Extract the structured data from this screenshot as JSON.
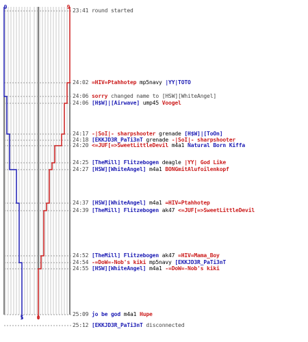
{
  "colors": {
    "blue": "#1c1cb4",
    "red": "#cc1c1c",
    "time": "#444444",
    "grid": "#c8c8c8",
    "axis": "#000000",
    "dotted": "#999999"
  },
  "scores": {
    "blue_start": "9",
    "red_start": "9",
    "blue_end": "5",
    "red_end": "0"
  },
  "events": [
    {
      "time": "23:41",
      "parts": [
        {
          "t": "round started",
          "c": "tx"
        }
      ]
    },
    {
      "time": "24:02",
      "parts": [
        {
          "t": "=HIV=Ptahhotep",
          "c": "red"
        },
        {
          "t": "mp5navy",
          "c": "wp"
        },
        {
          "t": "|YY|TOTO",
          "c": "blue"
        }
      ]
    },
    {
      "time": "24:06",
      "parts": [
        {
          "t": "sorry",
          "c": "red"
        },
        {
          "t": "changed name to",
          "c": "tx"
        },
        {
          "t": "[HSW][WhiteAngel]",
          "c": "tx"
        }
      ]
    },
    {
      "time": "24:06",
      "parts": [
        {
          "t": "[H$W]|[Airwave]",
          "c": "blue"
        },
        {
          "t": "ump45",
          "c": "wp"
        },
        {
          "t": "Voogel",
          "c": "red"
        }
      ]
    },
    {
      "time": "24:17",
      "parts": [
        {
          "t": "-|SoI|- sharpshooter",
          "c": "red"
        },
        {
          "t": "grenade",
          "c": "wp"
        },
        {
          "t": "[H$W]|[ToOn]",
          "c": "blue"
        }
      ]
    },
    {
      "time": "24:18",
      "parts": [
        {
          "t": "[EKKJD3R_PaTi3nT",
          "c": "blue"
        },
        {
          "t": "grenade",
          "c": "wp"
        },
        {
          "t": "-|SoI|- sharpshooter",
          "c": "red"
        }
      ]
    },
    {
      "time": "24:20",
      "parts": [
        {
          "t": "<=JUF[=>SweetLittleDevil",
          "c": "red"
        },
        {
          "t": "m4a1",
          "c": "wp"
        },
        {
          "t": "Natural Born Kiffa",
          "c": "blue"
        }
      ]
    },
    {
      "time": "24:25",
      "parts": [
        {
          "t": "[TheMill] Flitzebogen",
          "c": "blue"
        },
        {
          "t": "deagle",
          "c": "wp"
        },
        {
          "t": "|YY| God Like",
          "c": "red"
        }
      ]
    },
    {
      "time": "24:27",
      "parts": [
        {
          "t": "[HSW][WhiteAngel]",
          "c": "blue"
        },
        {
          "t": "m4a1",
          "c": "wp"
        },
        {
          "t": "BONGmitAlufoilenkopf",
          "c": "red"
        }
      ]
    },
    {
      "time": "24:37",
      "parts": [
        {
          "t": "[HSW][WhiteAngel]",
          "c": "blue"
        },
        {
          "t": "m4a1",
          "c": "wp"
        },
        {
          "t": "=HIV=Ptahhotep",
          "c": "red"
        }
      ]
    },
    {
      "time": "24:39",
      "parts": [
        {
          "t": "[TheMill] Flitzebogen",
          "c": "blue"
        },
        {
          "t": "ak47",
          "c": "wp"
        },
        {
          "t": "<=JUF[=>SweetLittleDevil",
          "c": "red"
        }
      ]
    },
    {
      "time": "24:52",
      "parts": [
        {
          "t": "[TheMill] Flitzebogen",
          "c": "blue"
        },
        {
          "t": "ak47",
          "c": "wp"
        },
        {
          "t": "=HIV=Mama_Boy",
          "c": "red"
        }
      ]
    },
    {
      "time": "24:54",
      "parts": [
        {
          "t": "-=DoW=-Nob's kiki",
          "c": "red"
        },
        {
          "t": "mp5navy",
          "c": "wp"
        },
        {
          "t": "[EKKJD3R_PaTi3nT",
          "c": "blue"
        }
      ]
    },
    {
      "time": "24:55",
      "parts": [
        {
          "t": "[HSW][WhiteAngel]",
          "c": "blue"
        },
        {
          "t": "m4a1",
          "c": "wp"
        },
        {
          "t": "-=DoW=-Nob's kiki",
          "c": "red"
        }
      ]
    },
    {
      "time": "25:09",
      "parts": [
        {
          "t": "jo be god",
          "c": "blue"
        },
        {
          "t": "m4a1",
          "c": "wp"
        },
        {
          "t": "Hupe",
          "c": "red"
        }
      ]
    },
    {
      "time": "25:12",
      "parts": [
        {
          "t": "[EKKJD3R_PaTi3nT",
          "c": "blue"
        },
        {
          "t": "disconnected",
          "c": "tx"
        }
      ]
    }
  ]
}
